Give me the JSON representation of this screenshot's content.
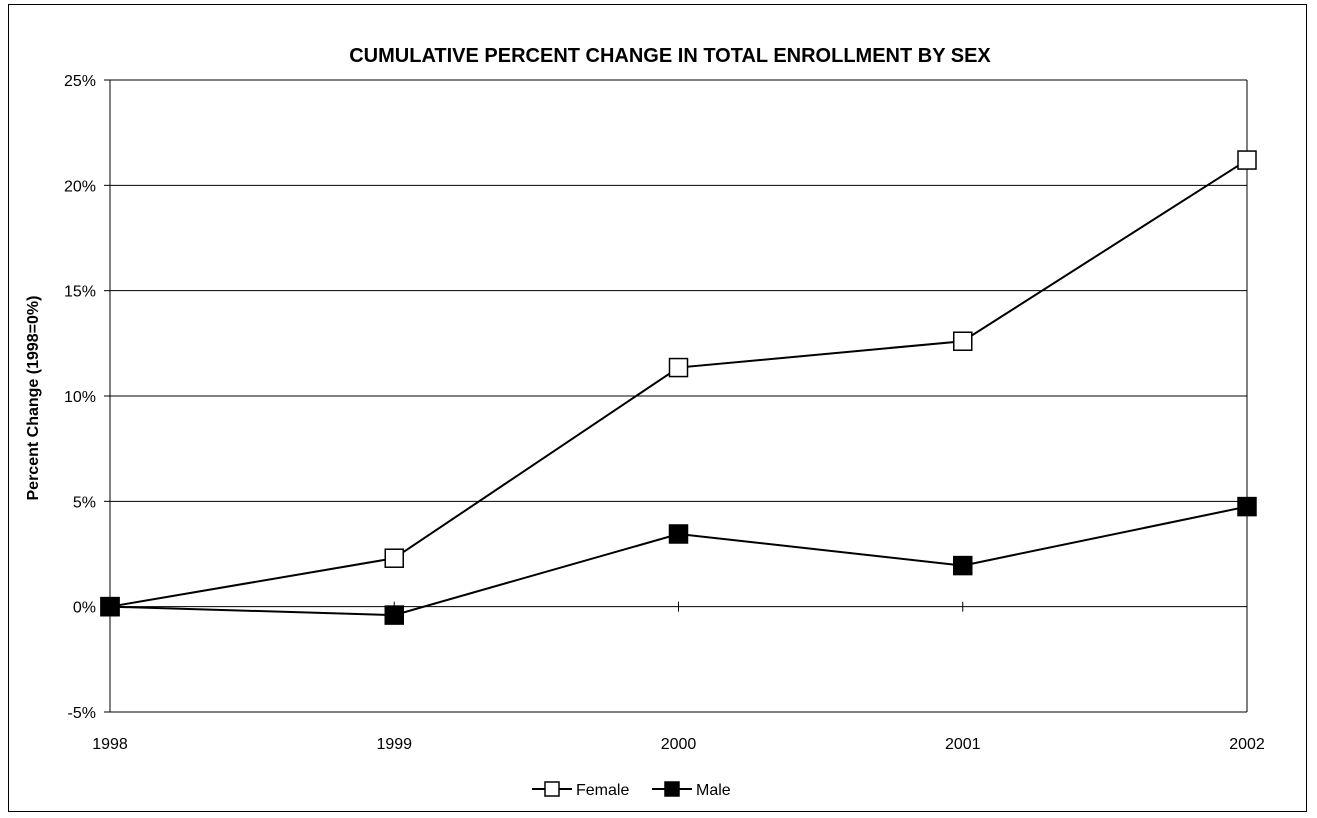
{
  "chart_data": {
    "type": "line",
    "title": "CUMULATIVE PERCENT CHANGE IN TOTAL ENROLLMENT BY SEX",
    "xlabel": "",
    "ylabel": "Percent Change (1998=0%)",
    "categories": [
      "1998",
      "1999",
      "2000",
      "2001",
      "2002"
    ],
    "y_ticks": [
      "-5%",
      "0%",
      "5%",
      "10%",
      "15%",
      "20%",
      "25%"
    ],
    "ylim": [
      -5,
      25
    ],
    "grid": true,
    "legend_position": "bottom",
    "series": [
      {
        "name": "Female",
        "values": [
          0,
          2.3,
          11.35,
          12.6,
          21.2
        ],
        "marker": "open-square",
        "color": "#000000"
      },
      {
        "name": "Male",
        "values": [
          0,
          -0.4,
          3.45,
          1.95,
          4.75
        ],
        "marker": "filled-square",
        "color": "#000000"
      }
    ]
  }
}
